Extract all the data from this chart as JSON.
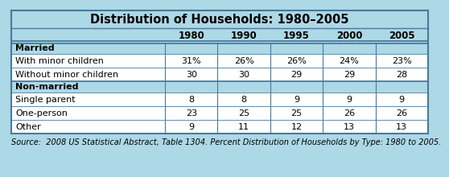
{
  "title": "Distribution of Households: 1980–2005",
  "columns": [
    "",
    "1980",
    "1990",
    "1995",
    "2000",
    "2005"
  ],
  "sections": [
    {
      "header": "Married",
      "rows": [
        {
          "label": "With minor children",
          "values": [
            "31%",
            "26%",
            "26%",
            "24%",
            "23%"
          ]
        },
        {
          "label": "Without minor children",
          "values": [
            "30",
            "30",
            "29",
            "29",
            "28"
          ]
        }
      ]
    },
    {
      "header": "Non-married",
      "rows": [
        {
          "label": "Single parent",
          "values": [
            "8",
            "8",
            "9",
            "9",
            "9"
          ]
        },
        {
          "label": "One-person",
          "values": [
            "23",
            "25",
            "25",
            "26",
            "26"
          ]
        },
        {
          "label": "Other",
          "values": [
            "9",
            "11",
            "12",
            "13",
            "13"
          ]
        }
      ]
    }
  ],
  "source": "Source:  2008 US Statistical Abstract, Table 1304. Percent Distribution of Households by Type: 1980 to 2005.",
  "fig_bg_color": "#add8e6",
  "title_bg_color": "#add8e6",
  "section_bg_color": "#add8e6",
  "data_row_bg_color": "#ffffff",
  "border_color": "#4a7a9a",
  "title_fontsize": 10.5,
  "col_header_fontsize": 8.5,
  "row_fontsize": 8.0,
  "source_fontsize": 7.0
}
